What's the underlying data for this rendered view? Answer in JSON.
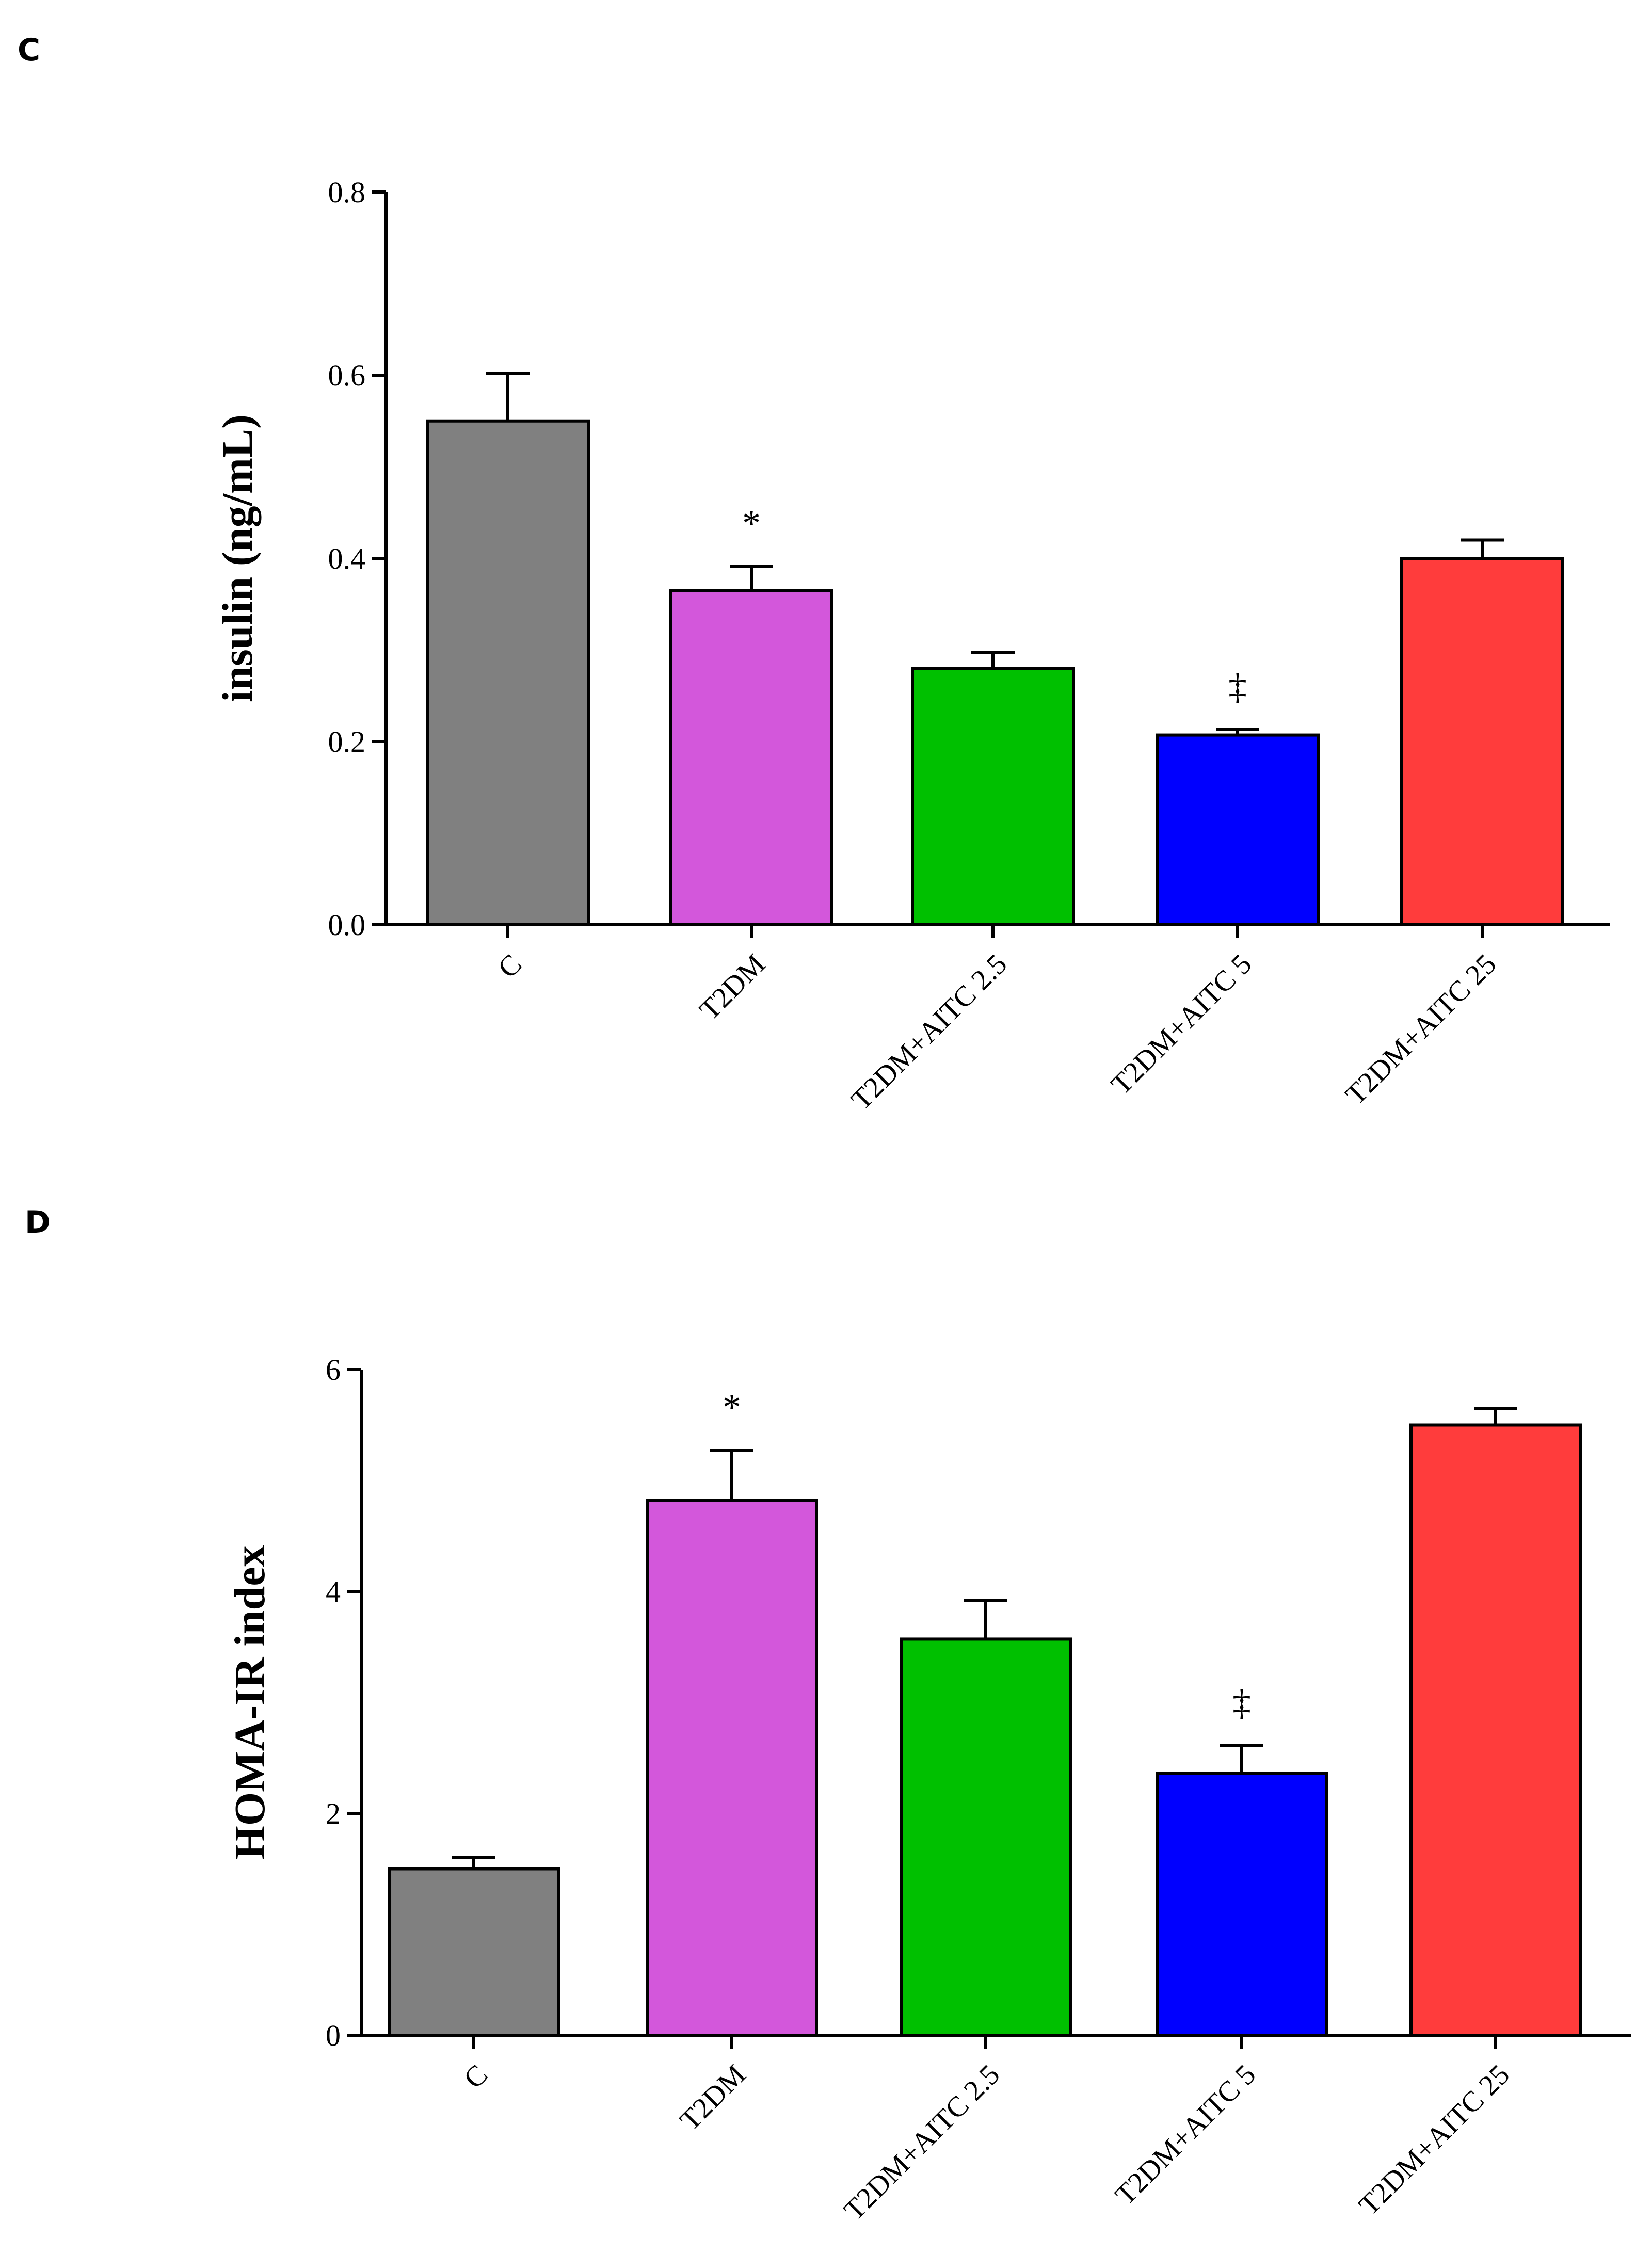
{
  "chart_data": [
    {
      "type": "bar",
      "panel_label": "C",
      "title": "",
      "xlabel": "",
      "ylabel": "insulin (ng/mL)",
      "ylim": [
        0,
        0.8
      ],
      "yticks": [
        0.0,
        0.2,
        0.4,
        0.6,
        0.8
      ],
      "ytick_labels": [
        "0.0",
        "0.2",
        "0.4",
        "0.6",
        "0.8"
      ],
      "categories": [
        "C",
        "T2DM",
        "T2DM+AITC 2.5",
        "T2DM+AITC 5",
        "T2DM+AITC 25"
      ],
      "values": [
        0.55,
        0.365,
        0.28,
        0.207,
        0.4
      ],
      "errors": [
        0.052,
        0.026,
        0.017,
        0.006,
        0.02
      ],
      "colors": [
        "#808080",
        "#d357db",
        "#00c000",
        "#0000ff",
        "#ff3c3c"
      ],
      "annotations": [
        "",
        "*",
        "",
        "‡",
        ""
      ],
      "grid": false
    },
    {
      "type": "bar",
      "panel_label": "D",
      "title": "",
      "xlabel": "",
      "ylabel": "HOMA-IR index",
      "ylim": [
        0,
        6
      ],
      "yticks": [
        0,
        2,
        4,
        6
      ],
      "ytick_labels": [
        "0",
        "2",
        "4",
        "6"
      ],
      "categories": [
        "C",
        "T2DM",
        "T2DM+AITC 2.5",
        "T2DM+AITC 5",
        "T2DM+AITC 25"
      ],
      "values": [
        1.5,
        4.82,
        3.57,
        2.36,
        5.5
      ],
      "errors": [
        0.1,
        0.45,
        0.35,
        0.25,
        0.15
      ],
      "colors": [
        "#808080",
        "#d357db",
        "#00c000",
        "#0000ff",
        "#ff3c3c"
      ],
      "annotations": [
        "",
        "*",
        "",
        "‡",
        ""
      ],
      "grid": false
    }
  ]
}
